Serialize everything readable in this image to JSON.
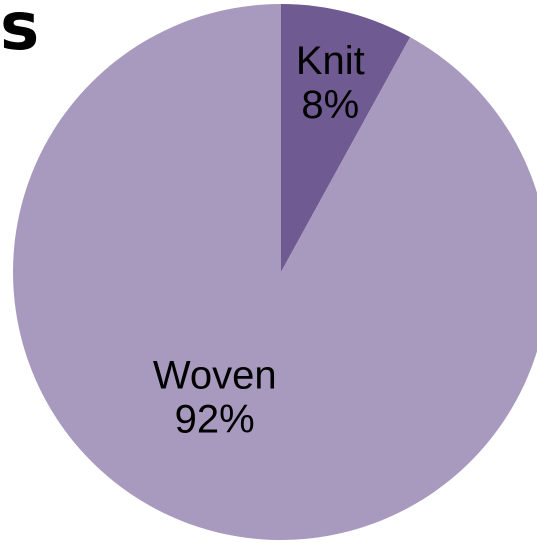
{
  "title_fragment": "s",
  "chart_data": {
    "type": "pie",
    "categories": [
      "Knit",
      "Woven"
    ],
    "values": [
      8,
      92
    ],
    "labels": [
      "Knit",
      "Woven"
    ],
    "percent_labels": [
      "8%",
      "92%"
    ],
    "colors": [
      "#6f5a91",
      "#a89abe"
    ],
    "start_angle_deg": 0,
    "direction": "clockwise",
    "legend": "none"
  }
}
